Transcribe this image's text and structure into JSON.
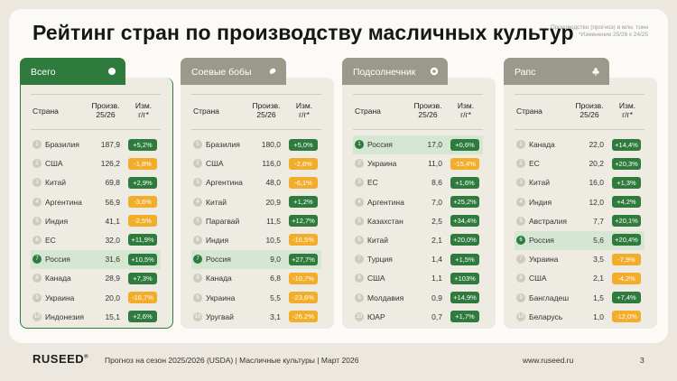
{
  "title": "Рейтинг стран по производству масличных культур",
  "note": {
    "line1": "Производство (прогноз) в млн. тонн",
    "line2": "*Изменение 25/26 к 24/25"
  },
  "headers": {
    "country": "Страна",
    "prod_line1": "Произв.",
    "prod_line2": "25/26",
    "change_line1": "Изм.",
    "change_line2": "г/г*"
  },
  "panels": [
    {
      "tab": "Всего",
      "icon": "circle-icon",
      "active": true,
      "rows": [
        {
          "rank": "1",
          "country": "Бразилия",
          "value": "187,9",
          "change": "+5,2%",
          "dir": "up"
        },
        {
          "rank": "2",
          "country": "США",
          "value": "126,2",
          "change": "-1,8%",
          "dir": "down"
        },
        {
          "rank": "3",
          "country": "Китай",
          "value": "69,8",
          "change": "+2,9%",
          "dir": "up"
        },
        {
          "rank": "4",
          "country": "Аргентина",
          "value": "56,9",
          "change": "-3,6%",
          "dir": "down"
        },
        {
          "rank": "5",
          "country": "Индия",
          "value": "41,1",
          "change": "-2,5%",
          "dir": "down"
        },
        {
          "rank": "6",
          "country": "ЕС",
          "value": "32,0",
          "change": "+11,9%",
          "dir": "up"
        },
        {
          "rank": "7",
          "country": "Россия",
          "value": "31,6",
          "change": "+10,5%",
          "dir": "up",
          "highlight": true
        },
        {
          "rank": "8",
          "country": "Канада",
          "value": "28,9",
          "change": "+7,3%",
          "dir": "up"
        },
        {
          "rank": "9",
          "country": "Украина",
          "value": "20,0",
          "change": "-16,7%",
          "dir": "down"
        },
        {
          "rank": "10",
          "country": "Индонезия",
          "value": "15,1",
          "change": "+2,6%",
          "dir": "up"
        }
      ]
    },
    {
      "tab": "Соевые бобы",
      "icon": "soybean-icon",
      "active": false,
      "rows": [
        {
          "rank": "1",
          "country": "Бразилия",
          "value": "180,0",
          "change": "+5,0%",
          "dir": "up"
        },
        {
          "rank": "2",
          "country": "США",
          "value": "116,0",
          "change": "-2,6%",
          "dir": "down"
        },
        {
          "rank": "3",
          "country": "Аргентина",
          "value": "48,0",
          "change": "-6,1%",
          "dir": "down"
        },
        {
          "rank": "4",
          "country": "Китай",
          "value": "20,9",
          "change": "+1,2%",
          "dir": "up"
        },
        {
          "rank": "5",
          "country": "Парагвай",
          "value": "11,5",
          "change": "+12,7%",
          "dir": "up"
        },
        {
          "rank": "6",
          "country": "Индия",
          "value": "10,5",
          "change": "-16,5%",
          "dir": "down"
        },
        {
          "rank": "7",
          "country": "Россия",
          "value": "9,0",
          "change": "+27,7%",
          "dir": "up",
          "highlight": true
        },
        {
          "rank": "8",
          "country": "Канада",
          "value": "6,8",
          "change": "-10,7%",
          "dir": "down"
        },
        {
          "rank": "9",
          "country": "Украина",
          "value": "5,5",
          "change": "-23,6%",
          "dir": "down"
        },
        {
          "rank": "10",
          "country": "Уругвай",
          "value": "3,1",
          "change": "-26,2%",
          "dir": "down"
        }
      ]
    },
    {
      "tab": "Подсолнечник",
      "icon": "sunflower-icon",
      "active": false,
      "rows": [
        {
          "rank": "1",
          "country": "Россия",
          "value": "17,0",
          "change": "+0,6%",
          "dir": "up",
          "highlight": true
        },
        {
          "rank": "2",
          "country": "Украина",
          "value": "11,0",
          "change": "-15,4%",
          "dir": "down"
        },
        {
          "rank": "3",
          "country": "ЕС",
          "value": "8,6",
          "change": "+1,6%",
          "dir": "up"
        },
        {
          "rank": "4",
          "country": "Аргентина",
          "value": "7,0",
          "change": "+25,2%",
          "dir": "up"
        },
        {
          "rank": "5",
          "country": "Казахстан",
          "value": "2,5",
          "change": "+34,4%",
          "dir": "up"
        },
        {
          "rank": "6",
          "country": "Китай",
          "value": "2,1",
          "change": "+20,0%",
          "dir": "up"
        },
        {
          "rank": "7",
          "country": "Турция",
          "value": "1,4",
          "change": "+1,5%",
          "dir": "up"
        },
        {
          "rank": "8",
          "country": "США",
          "value": "1,1",
          "change": "+103%",
          "dir": "up"
        },
        {
          "rank": "9",
          "country": "Молдавия",
          "value": "0,9",
          "change": "+14,9%",
          "dir": "up"
        },
        {
          "rank": "10",
          "country": "ЮАР",
          "value": "0,7",
          "change": "+1,7%",
          "dir": "up"
        }
      ]
    },
    {
      "tab": "Рапс",
      "icon": "rapeseed-icon",
      "active": false,
      "rows": [
        {
          "rank": "1",
          "country": "Канада",
          "value": "22,0",
          "change": "+14,4%",
          "dir": "up"
        },
        {
          "rank": "2",
          "country": "ЕС",
          "value": "20,2",
          "change": "+20,3%",
          "dir": "up"
        },
        {
          "rank": "3",
          "country": "Китай",
          "value": "16,0",
          "change": "+1,3%",
          "dir": "up"
        },
        {
          "rank": "4",
          "country": "Индия",
          "value": "12,0",
          "change": "+4,2%",
          "dir": "up"
        },
        {
          "rank": "5",
          "country": "Австралия",
          "value": "7,7",
          "change": "+20,1%",
          "dir": "up"
        },
        {
          "rank": "6",
          "country": "Россия",
          "value": "5,6",
          "change": "+20,4%",
          "dir": "up",
          "highlight": true
        },
        {
          "rank": "7",
          "country": "Украина",
          "value": "3,5",
          "change": "-7,9%",
          "dir": "down"
        },
        {
          "rank": "8",
          "country": "США",
          "value": "2,1",
          "change": "-4,2%",
          "dir": "down"
        },
        {
          "rank": "9",
          "country": "Бангладеш",
          "value": "1,5",
          "change": "+7,4%",
          "dir": "up"
        },
        {
          "rank": "10",
          "country": "Беларусь",
          "value": "1,0",
          "change": "-12,0%",
          "dir": "down"
        }
      ]
    }
  ],
  "footer": {
    "logo": "RUSEED",
    "logo_mark": "®",
    "text": "Прогноз на сезон 2025/2026 (USDA)  |  Масличные культуры  |  Март 2026",
    "url": "www.ruseed.ru",
    "page": "3"
  },
  "colors": {
    "accent": "#2f7a3d",
    "highlight_row": "#d5e6d3",
    "negative": "#f2ad2a",
    "tab_inactive": "#9a9a8a"
  }
}
